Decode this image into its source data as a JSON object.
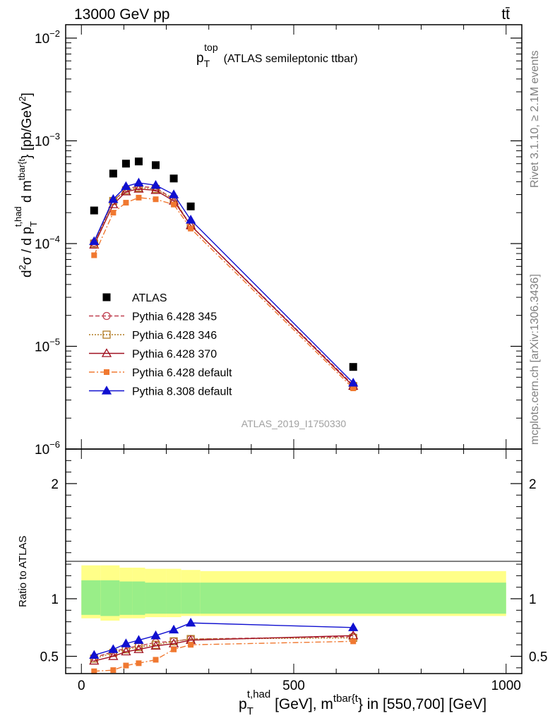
{
  "header": {
    "energy_label": "13000 GeV pp",
    "process_label": "tt̄"
  },
  "side_labels": {
    "rivet": "Rivet 3.1.10, ≥ 2.1M events",
    "mcplots": "mcplots.cern.ch [arXiv:1306.3436]"
  },
  "chart_data": [
    {
      "type": "scatter",
      "panel": "main",
      "title": {
        "main": "p",
        "sup": "top",
        "sub": "T",
        "rest": "(ATLAS semileptonic ttbar)"
      },
      "ylabel": "d²σ / d p_T^{t,had} d m^{tbar{t}} [pb/GeV²]",
      "yscale": "log",
      "ylim": [
        1e-06,
        0.0135
      ],
      "y_ticks": [
        {
          "value": 1e-06,
          "base": "10",
          "exp": "−6"
        },
        {
          "value": 1e-05,
          "base": "10",
          "exp": "−5"
        },
        {
          "value": 0.0001,
          "base": "10",
          "exp": "−4"
        },
        {
          "value": 0.001,
          "base": "10",
          "exp": "−3"
        },
        {
          "value": 0.01,
          "base": "10",
          "exp": "−2"
        }
      ],
      "xlim": [
        -37,
        1037
      ],
      "watermark": "ATLAS_2019_I1750330",
      "legend_position": "center-left",
      "series": [
        {
          "name": "ATLAS",
          "color": "#000000",
          "marker": "square",
          "line": "none",
          "x": [
            30,
            75,
            105,
            135,
            175,
            217.5,
            257.5,
            640
          ],
          "y": [
            0.00021,
            0.00048,
            0.0006,
            0.00063,
            0.00058,
            0.00043,
            0.00023,
            6.3e-06
          ]
        },
        {
          "name": "Pythia 6.428 345",
          "color": "#c04050",
          "marker": "circle-open",
          "line": "dashed",
          "x": [
            30,
            75,
            105,
            135,
            175,
            217.5,
            257.5,
            640
          ],
          "y": [
            0.000102,
            0.00026,
            0.00034,
            0.00036,
            0.00035,
            0.00027,
            0.00015,
            4.2e-06
          ]
        },
        {
          "name": "Pythia 6.428 346",
          "color": "#b07a20",
          "marker": "square-open",
          "line": "dotted",
          "x": [
            30,
            75,
            105,
            135,
            175,
            217.5,
            257.5,
            640
          ],
          "y": [
            0.0001,
            0.00026,
            0.00033,
            0.00035,
            0.00034,
            0.00027,
            0.00015,
            4.1e-06
          ]
        },
        {
          "name": "Pythia 6.428 370",
          "color": "#a01020",
          "marker": "triangle-open",
          "line": "solid",
          "x": [
            30,
            75,
            105,
            135,
            175,
            217.5,
            257.5,
            640
          ],
          "y": [
            9.7e-05,
            0.00024,
            0.00032,
            0.00034,
            0.00033,
            0.00026,
            0.00015,
            4.1e-06
          ]
        },
        {
          "name": "Pythia 6.428 default",
          "color": "#f07830",
          "marker": "square-small",
          "line": "dashdot",
          "x": [
            30,
            75,
            105,
            135,
            175,
            217.5,
            257.5,
            640
          ],
          "y": [
            7.7e-05,
            0.0002,
            0.00025,
            0.00028,
            0.00027,
            0.00024,
            0.00014,
            3.9e-06
          ]
        },
        {
          "name": "Pythia 8.308 default",
          "color": "#1010d0",
          "marker": "triangle",
          "line": "solid",
          "x": [
            30,
            75,
            105,
            135,
            175,
            217.5,
            257.5,
            640
          ],
          "y": [
            0.000105,
            0.00027,
            0.00036,
            0.00039,
            0.00037,
            0.0003,
            0.00017,
            4.4e-06
          ]
        }
      ]
    },
    {
      "type": "scatter",
      "panel": "ratio",
      "ylabel": "Ratio to ATLAS",
      "ylim": [
        0.35,
        2.3
      ],
      "xlim": [
        -37,
        1037
      ],
      "y_ticks": [
        {
          "value": 0.5,
          "label": "0.5"
        },
        {
          "value": 1,
          "label": "1"
        },
        {
          "value": 2,
          "label": "2"
        }
      ],
      "x_ticks": [
        {
          "value": 0,
          "label": "0"
        },
        {
          "value": 500,
          "label": "500"
        },
        {
          "value": 1000,
          "label": "1000"
        }
      ],
      "xlabel": "p_T^{t,had} [GeV], m^{tbar{t}} in [550,700] [GeV]",
      "band_edges": [
        0,
        45,
        90,
        120,
        150,
        200,
        235,
        280,
        1000
      ],
      "band_inner": [
        [
          0.86,
          1.16
        ],
        [
          0.85,
          1.16
        ],
        [
          0.86,
          1.15
        ],
        [
          0.86,
          1.15
        ],
        [
          0.87,
          1.14
        ],
        [
          0.87,
          1.14
        ],
        [
          0.87,
          1.14
        ],
        [
          0.87,
          1.14
        ]
      ],
      "band_outer": [
        [
          0.83,
          1.29
        ],
        [
          0.81,
          1.29
        ],
        [
          0.83,
          1.27
        ],
        [
          0.83,
          1.27
        ],
        [
          0.84,
          1.26
        ],
        [
          0.84,
          1.26
        ],
        [
          0.85,
          1.25
        ],
        [
          0.85,
          1.24
        ]
      ],
      "series": [
        {
          "name": "Pythia 6.428 345",
          "color": "#c04050",
          "marker": "circle-open",
          "line": "dashed",
          "x": [
            30,
            75,
            105,
            135,
            175,
            217.5,
            257.5,
            640
          ],
          "y": [
            0.49,
            0.54,
            0.57,
            0.59,
            0.62,
            0.63,
            0.65,
            0.67
          ]
        },
        {
          "name": "Pythia 6.428 346",
          "color": "#b07a20",
          "marker": "square-open",
          "line": "dotted",
          "x": [
            30,
            75,
            105,
            135,
            175,
            217.5,
            257.5,
            640
          ],
          "y": [
            0.48,
            0.53,
            0.56,
            0.58,
            0.6,
            0.63,
            0.65,
            0.66
          ]
        },
        {
          "name": "Pythia 6.428 370",
          "color": "#a01020",
          "marker": "triangle-open",
          "line": "solid",
          "x": [
            30,
            75,
            105,
            135,
            175,
            217.5,
            257.5,
            640
          ],
          "y": [
            0.46,
            0.5,
            0.54,
            0.56,
            0.59,
            0.61,
            0.64,
            0.68
          ]
        },
        {
          "name": "Pythia 6.428 default",
          "color": "#f07830",
          "marker": "square-small",
          "line": "dashdot",
          "x": [
            30,
            75,
            105,
            135,
            175,
            217.5,
            257.5,
            640
          ],
          "y": [
            0.37,
            0.38,
            0.42,
            0.44,
            0.47,
            0.56,
            0.6,
            0.63
          ]
        },
        {
          "name": "Pythia 8.308 default",
          "color": "#1010d0",
          "marker": "triangle",
          "line": "solid",
          "x": [
            30,
            75,
            105,
            135,
            175,
            217.5,
            257.5,
            640
          ],
          "y": [
            0.51,
            0.56,
            0.61,
            0.64,
            0.68,
            0.73,
            0.79,
            0.75
          ]
        }
      ]
    }
  ]
}
